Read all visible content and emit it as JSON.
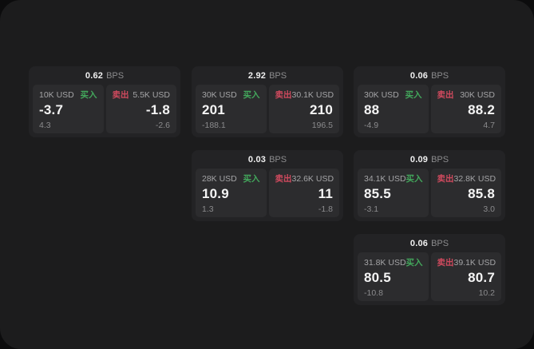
{
  "labels": {
    "bps": "BPS",
    "buy": "买入",
    "sell": "卖出"
  },
  "colors": {
    "outer_bg": "#0c0c0d",
    "window_bg": "#1c1c1d",
    "card_bg": "#232325",
    "panel_bg": "#2c2c2e",
    "text_primary": "#f5f5f5",
    "text_secondary": "#8b8b8d",
    "buy_green": "#43a85c",
    "sell_red": "#d04a5e"
  },
  "cards": [
    {
      "row": 1,
      "col": 1,
      "bps": "0.62",
      "buy": {
        "size": "10K USD",
        "price": "-3.7",
        "change": "4.3"
      },
      "sell": {
        "size": "5.5K USD",
        "price": "-1.8",
        "change": "-2.6"
      }
    },
    {
      "row": 1,
      "col": 2,
      "bps": "2.92",
      "buy": {
        "size": "30K USD",
        "price": "201",
        "change": "-188.1"
      },
      "sell": {
        "size": "30.1K USD",
        "price": "210",
        "change": "196.5"
      }
    },
    {
      "row": 1,
      "col": 3,
      "bps": "0.06",
      "buy": {
        "size": "30K USD",
        "price": "88",
        "change": "-4.9"
      },
      "sell": {
        "size": "30K USD",
        "price": "88.2",
        "change": "4.7"
      }
    },
    {
      "row": 2,
      "col": 2,
      "bps": "0.03",
      "buy": {
        "size": "28K USD",
        "price": "10.9",
        "change": "1.3"
      },
      "sell": {
        "size": "32.6K USD",
        "price": "11",
        "change": "-1.8"
      }
    },
    {
      "row": 2,
      "col": 3,
      "bps": "0.09",
      "buy": {
        "size": "34.1K USD",
        "price": "85.5",
        "change": "-3.1"
      },
      "sell": {
        "size": "32.8K USD",
        "price": "85.8",
        "change": "3.0"
      }
    },
    {
      "row": 3,
      "col": 3,
      "bps": "0.06",
      "buy": {
        "size": "31.8K USD",
        "price": "80.5",
        "change": "-10.8"
      },
      "sell": {
        "size": "39.1K USD",
        "price": "80.7",
        "change": "10.2"
      }
    }
  ]
}
